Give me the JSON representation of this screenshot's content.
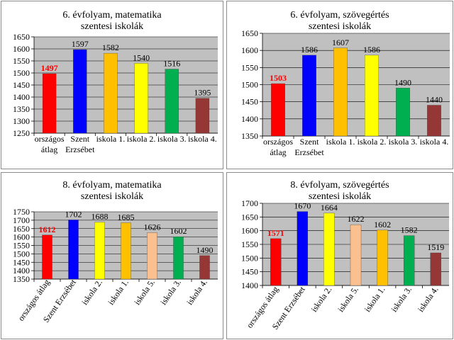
{
  "chart_data": [
    {
      "type": "bar",
      "title_line1": "6. évfolyam, matematika",
      "title_line2": "szentesi iskolák",
      "categories": [
        [
          "országos",
          "átlag"
        ],
        [
          "Szent",
          "Erzsébet"
        ],
        [
          "iskola 1."
        ],
        [
          "iskola 2."
        ],
        [
          "iskola 3."
        ],
        [
          "iskola 4."
        ]
      ],
      "values": [
        1497,
        1597,
        1582,
        1540,
        1516,
        1395
      ],
      "colors": [
        "#ff0000",
        "#0000ff",
        "#ffc000",
        "#ffff00",
        "#00b050",
        "#953735"
      ],
      "highlight_label_color": "#ff0000",
      "ylim": [
        1250,
        1650
      ],
      "ystep": 50,
      "label_rotation": "horizontal",
      "grid": true
    },
    {
      "type": "bar",
      "title_line1": "6. évfolyam, szövegértés",
      "title_line2": "szentesi iskolák",
      "categories": [
        [
          "országos",
          "átlag"
        ],
        [
          "Szent",
          "Erzsébet"
        ],
        [
          "iskola 1."
        ],
        [
          "iskola 2."
        ],
        [
          "iskola 3."
        ],
        [
          "iskola 4."
        ]
      ],
      "values": [
        1503,
        1586,
        1607,
        1586,
        1490,
        1440
      ],
      "colors": [
        "#ff0000",
        "#0000ff",
        "#ffc000",
        "#ffff00",
        "#00b050",
        "#953735"
      ],
      "highlight_label_color": "#ff0000",
      "ylim": [
        1350,
        1650
      ],
      "ystep": 50,
      "label_rotation": "horizontal",
      "grid": true
    },
    {
      "type": "bar",
      "title_line1": "8. évfolyam, matematika",
      "title_line2": "szentesi iskolák",
      "categories": [
        [
          "országos átlag"
        ],
        [
          "Szent Erzsébet"
        ],
        [
          "iskola 2."
        ],
        [
          "iskola 1."
        ],
        [
          "iskola 5."
        ],
        [
          "iskola 3."
        ],
        [
          "iskola 4."
        ]
      ],
      "values": [
        1612,
        1702,
        1688,
        1685,
        1626,
        1602,
        1490
      ],
      "colors": [
        "#ff0000",
        "#0000ff",
        "#ffff00",
        "#ffc000",
        "#fac090",
        "#00b050",
        "#953735"
      ],
      "highlight_label_color": "#ff0000",
      "ylim": [
        1350,
        1750
      ],
      "ystep": 50,
      "label_rotation": "diagonal",
      "grid": true
    },
    {
      "type": "bar",
      "title_line1": "8. évfolyam, szövegértés",
      "title_line2": "szentesi iskolák",
      "categories": [
        [
          "országos átlag"
        ],
        [
          "Szent Erzsébet"
        ],
        [
          "iskola 2."
        ],
        [
          "iskola 5."
        ],
        [
          "iskola 1."
        ],
        [
          "iskola 3."
        ],
        [
          "iskola 4."
        ]
      ],
      "values": [
        1571,
        1670,
        1664,
        1622,
        1602,
        1582,
        1519
      ],
      "colors": [
        "#ff0000",
        "#0000ff",
        "#ffff00",
        "#fac090",
        "#ffc000",
        "#00b050",
        "#953735"
      ],
      "highlight_label_color": "#ff0000",
      "ylim": [
        1400,
        1700
      ],
      "ystep": 50,
      "label_rotation": "diagonal",
      "grid": true
    }
  ]
}
